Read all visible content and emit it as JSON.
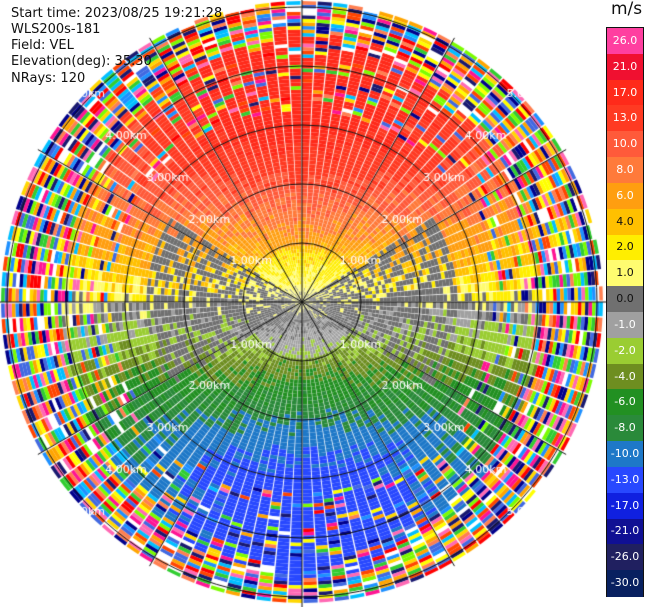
{
  "header": {
    "start_time": "Start time: 2023/08/25 19:21:28",
    "instrument": "WLS200s-181",
    "field": "Field: VEL",
    "elevation": "Elevation(deg): 35.30",
    "nrays": "NRays: 120"
  },
  "range_ring_labels": [
    "1.00km",
    "2.00km",
    "3.00km",
    "4.00km",
    "5.00km"
  ],
  "colorbar": {
    "unit": "m/s",
    "ticks": [
      "26.0",
      "21.0",
      "17.0",
      "13.0",
      "10.0",
      "8.0",
      "6.0",
      "4.0",
      "2.0",
      "1.0",
      "0.0",
      "-1.0",
      "-2.0",
      "-4.0",
      "-6.0",
      "-8.0",
      "-10.0",
      "-13.0",
      "-17.0",
      "-21.0",
      "-26.0",
      "-30.0"
    ],
    "colors": [
      "#ff3fa0",
      "#f01030",
      "#ff2a1a",
      "#ff3a22",
      "#ff5a3a",
      "#ff7a3a",
      "#ff9e10",
      "#ffc000",
      "#ffee00",
      "#fffc70",
      "#707070",
      "#a0a0a0",
      "#9acd32",
      "#6e8e20",
      "#229022",
      "#2a8a3a",
      "#1e78c8",
      "#2848ff",
      "#1020e0",
      "#101094",
      "#202060",
      "#082060"
    ]
  },
  "map": {
    "nrays": 120,
    "max_range_km": 5.1,
    "noise_colors": [
      "#ff1493",
      "#00008b",
      "#ff7f50",
      "#1e90ff",
      "#ffd700",
      "#32cd32",
      "#ff0000",
      "#7cfc00",
      "#ffffff",
      "#ff4500",
      "#4169e1",
      "#ffff00",
      "#ff69b4",
      "#191970",
      "#00bfff",
      "#ffa500"
    ]
  }
}
